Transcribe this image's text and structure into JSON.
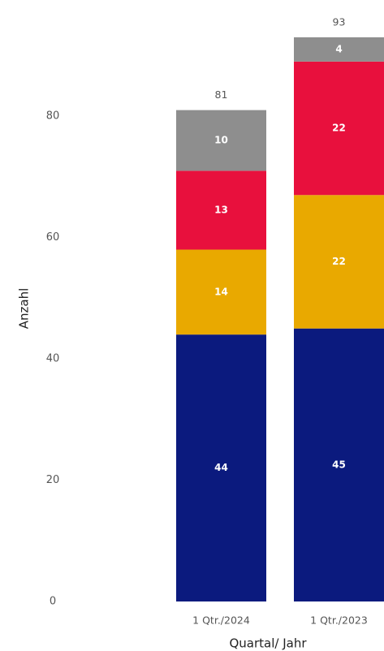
{
  "chart_data": {
    "type": "stacked_bar",
    "categories": [
      "1 Qtr./2024",
      "1 Qtr./2023"
    ],
    "series": [
      {
        "color": "#0b1a7e",
        "values": [
          44,
          45
        ]
      },
      {
        "color": "#e9a900",
        "values": [
          14,
          22
        ]
      },
      {
        "color": "#e8103d",
        "values": [
          13,
          22
        ]
      },
      {
        "color": "#8e8e8e",
        "values": [
          10,
          4
        ]
      }
    ],
    "totals": [
      81,
      93
    ],
    "ylim": [
      0,
      95
    ],
    "yticks": [
      0,
      20,
      40,
      60,
      80
    ],
    "y_label": "Anzahl",
    "x_label": "Quartal/ Jahr"
  }
}
